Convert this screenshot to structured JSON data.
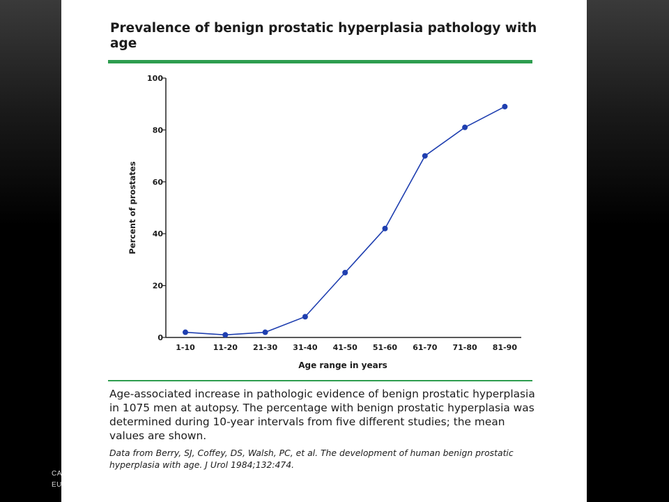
{
  "slide": {
    "corner_line_1": "CA",
    "corner_line_2": "EU"
  },
  "figure": {
    "title": "Prevalence of benign prostatic hyperplasia pathology with age",
    "caption": "Age-associated increase in pathologic evidence of benign prostatic hyperplasia in 1075 men at autopsy. The percentage with benign prostatic hyperplasia was determined during 10-year intervals from five different studies; the mean values are shown.",
    "source": "Data from Berry, SJ, Coffey, DS, Walsh, PC, et al. The development of human benign prostatic hyperplasia with age. J Urol 1984;132:474."
  },
  "chart_data": {
    "type": "line",
    "title": "Prevalence of benign prostatic hyperplasia pathology with age",
    "xlabel": "Age range in years",
    "ylabel": "Percent of prostates",
    "categories": [
      "1-10",
      "11-20",
      "21-30",
      "31-40",
      "41-50",
      "51-60",
      "61-70",
      "71-80",
      "81-90"
    ],
    "values": [
      2,
      1,
      2,
      8,
      25,
      42,
      70,
      81,
      89
    ],
    "yticks": [
      0,
      20,
      40,
      60,
      80,
      100
    ],
    "ylim": [
      0,
      100
    ],
    "grid": false,
    "legend": "none",
    "color": "#1f3fb0"
  }
}
